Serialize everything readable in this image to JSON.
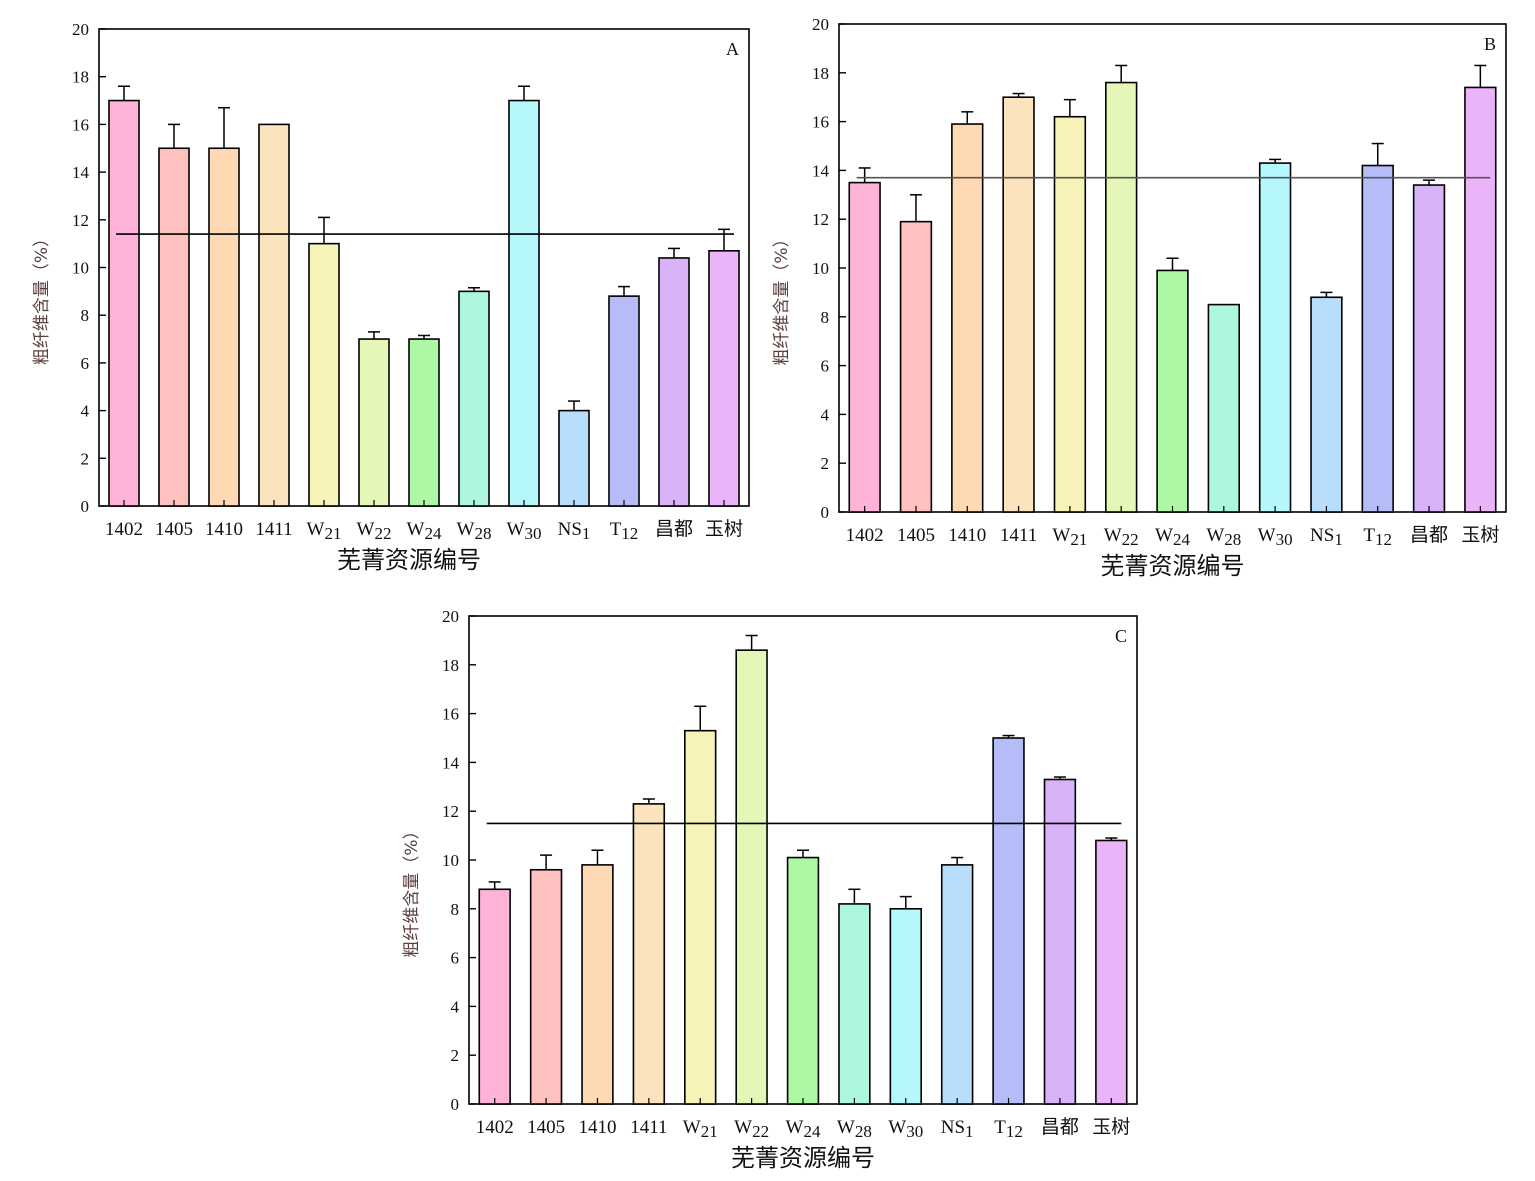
{
  "colors": {
    "bars": [
      "#ffb3d9",
      "#ffc0c0",
      "#ffd9b3",
      "#fbe3bd",
      "#f7f3b8",
      "#e4f7b8",
      "#adf7a5",
      "#adf7df",
      "#b5f7fb",
      "#b8defb",
      "#b5bcf8",
      "#d9b3f8",
      "#ebb3f8"
    ],
    "axis": "#000000"
  },
  "chart_data": [
    {
      "type": "bar",
      "panel_label": "A",
      "xlabel": "芜菁资源编号",
      "ylabel": "粗纤维含量（%）",
      "ylim": [
        0,
        20
      ],
      "yticks": [
        "0",
        "2",
        "4",
        "6",
        "8",
        "10",
        "12",
        "14",
        "16",
        "18",
        "20"
      ],
      "categories": [
        {
          "main": "1402",
          "sub": ""
        },
        {
          "main": "1405",
          "sub": ""
        },
        {
          "main": "1410",
          "sub": ""
        },
        {
          "main": "1411",
          "sub": ""
        },
        {
          "main": "W",
          "sub": "21"
        },
        {
          "main": "W",
          "sub": "22"
        },
        {
          "main": "W",
          "sub": "24"
        },
        {
          "main": "W",
          "sub": "28"
        },
        {
          "main": "W",
          "sub": "30"
        },
        {
          "main": "NS",
          "sub": "1"
        },
        {
          "main": "T",
          "sub": "12"
        },
        {
          "main": "昌都",
          "sub": ""
        },
        {
          "main": "玉树",
          "sub": ""
        }
      ],
      "values": [
        17.0,
        15.0,
        15.0,
        16.0,
        11.0,
        7.0,
        7.0,
        9.0,
        17.0,
        4.0,
        8.8,
        10.4,
        10.7
      ],
      "errors": [
        0.6,
        1.0,
        1.7,
        0.0,
        1.1,
        0.3,
        0.15,
        0.15,
        0.6,
        0.4,
        0.4,
        0.4,
        0.9
      ],
      "mean_line": 11.4
    },
    {
      "type": "bar",
      "panel_label": "B",
      "xlabel": "芜菁资源编号",
      "ylabel": "粗纤维含量（%）",
      "ylim": [
        0,
        20
      ],
      "yticks": [
        "0",
        "2",
        "4",
        "6",
        "8",
        "10",
        "12",
        "14",
        "16",
        "18",
        "20"
      ],
      "categories": [
        {
          "main": "1402",
          "sub": ""
        },
        {
          "main": "1405",
          "sub": ""
        },
        {
          "main": "1410",
          "sub": ""
        },
        {
          "main": "1411",
          "sub": ""
        },
        {
          "main": "W",
          "sub": "21"
        },
        {
          "main": "W",
          "sub": "22"
        },
        {
          "main": "W",
          "sub": "24"
        },
        {
          "main": "W",
          "sub": "28"
        },
        {
          "main": "W",
          "sub": "30"
        },
        {
          "main": "NS",
          "sub": "1"
        },
        {
          "main": "T",
          "sub": "12"
        },
        {
          "main": "昌都",
          "sub": ""
        },
        {
          "main": "玉树",
          "sub": ""
        }
      ],
      "values": [
        13.5,
        11.9,
        15.9,
        17.0,
        16.2,
        17.6,
        9.9,
        8.5,
        14.3,
        8.8,
        14.2,
        13.4,
        17.4
      ],
      "errors": [
        0.6,
        1.1,
        0.5,
        0.15,
        0.7,
        0.7,
        0.5,
        0.0,
        0.15,
        0.2,
        0.9,
        0.2,
        0.9
      ],
      "mean_line": 13.7
    },
    {
      "type": "bar",
      "panel_label": "C",
      "xlabel": "芜菁资源编号",
      "ylabel": "粗纤维含量（%）",
      "ylim": [
        0,
        20
      ],
      "yticks": [
        "0",
        "2",
        "4",
        "6",
        "8",
        "10",
        "12",
        "14",
        "16",
        "18",
        "20"
      ],
      "categories": [
        {
          "main": "1402",
          "sub": ""
        },
        {
          "main": "1405",
          "sub": ""
        },
        {
          "main": "1410",
          "sub": ""
        },
        {
          "main": "1411",
          "sub": ""
        },
        {
          "main": "W",
          "sub": "21"
        },
        {
          "main": "W",
          "sub": "22"
        },
        {
          "main": "W",
          "sub": "24"
        },
        {
          "main": "W",
          "sub": "28"
        },
        {
          "main": "W",
          "sub": "30"
        },
        {
          "main": "NS",
          "sub": "1"
        },
        {
          "main": "T",
          "sub": "12"
        },
        {
          "main": "昌都",
          "sub": ""
        },
        {
          "main": "玉树",
          "sub": ""
        }
      ],
      "values": [
        8.8,
        9.6,
        9.8,
        12.3,
        15.3,
        18.6,
        10.1,
        8.2,
        8.0,
        9.8,
        15.0,
        13.3,
        10.8
      ],
      "errors": [
        0.3,
        0.6,
        0.6,
        0.2,
        1.0,
        0.6,
        0.3,
        0.6,
        0.5,
        0.3,
        0.1,
        0.1,
        0.1
      ],
      "mean_line": 11.5
    }
  ]
}
